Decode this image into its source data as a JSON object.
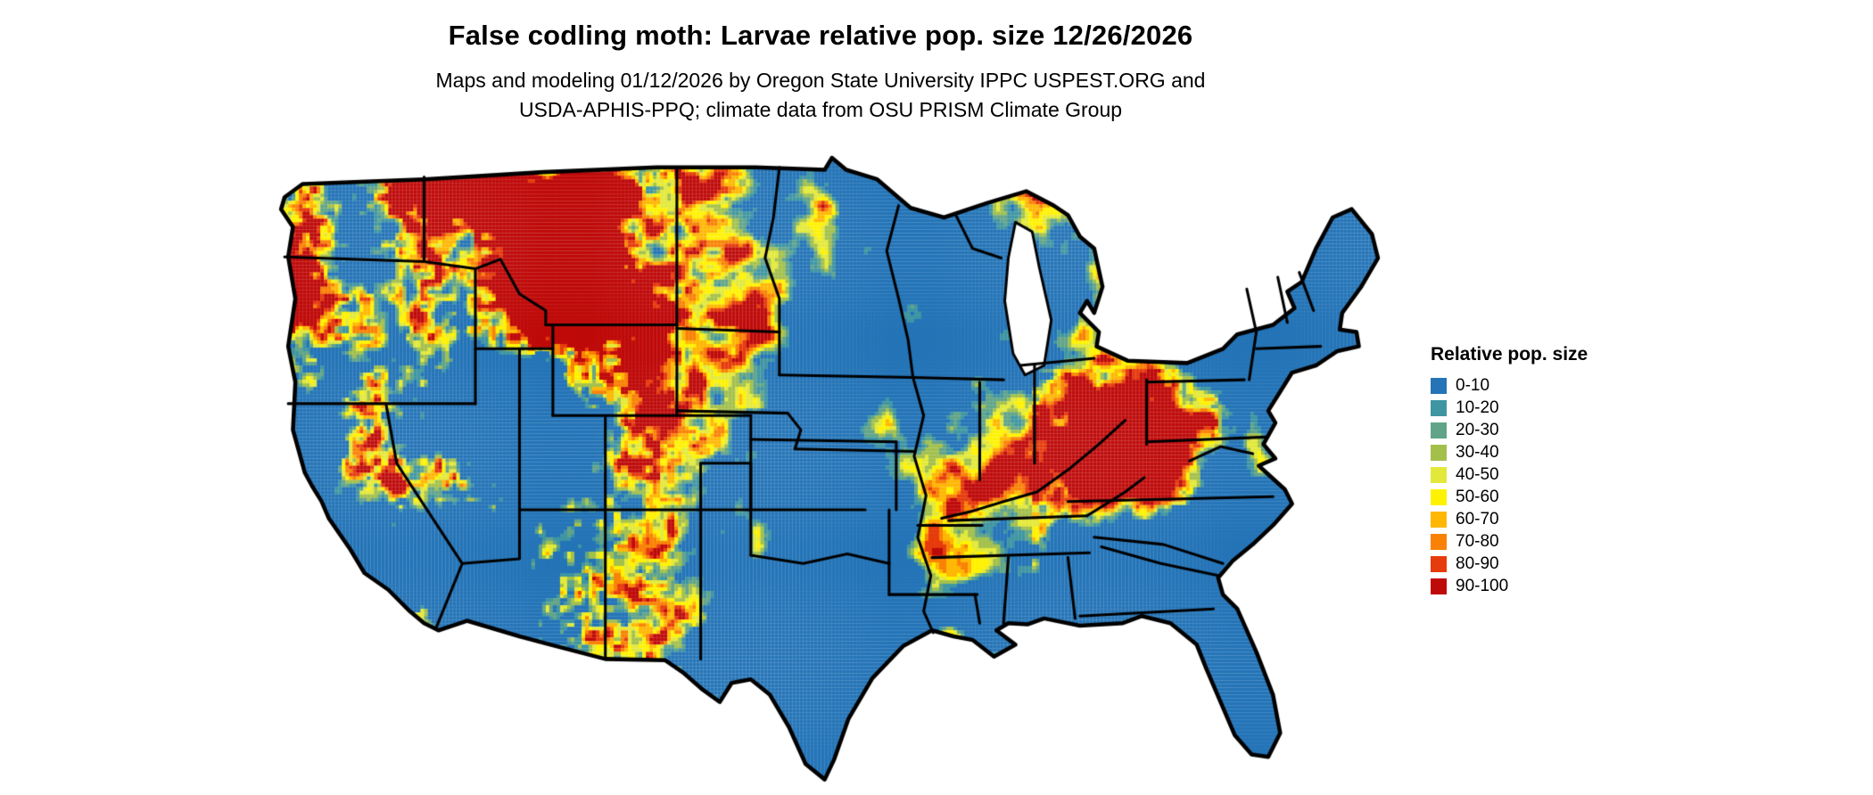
{
  "header": {
    "title": "False codling moth: Larvae relative pop. size 12/26/2026",
    "subtitle_line1": "Maps and modeling 01/12/2026 by Oregon State University IPPC USPEST.ORG and",
    "subtitle_line2": "USDA-APHIS-PPQ; climate data from OSU PRISM Climate Group"
  },
  "map": {
    "region": "Contiguous United States",
    "kind": "raster heat map of relative population size",
    "base_color_note": "majority of map is the 0-10 blue class with patches of high 90-100 red values fringed by yellow/orange"
  },
  "legend": {
    "title": "Relative pop. size",
    "items": [
      {
        "label": "0-10",
        "color": "#2474b7"
      },
      {
        "label": "10-20",
        "color": "#3f95a2"
      },
      {
        "label": "20-30",
        "color": "#62a487"
      },
      {
        "label": "30-40",
        "color": "#a3c04c"
      },
      {
        "label": "40-50",
        "color": "#e3e93a"
      },
      {
        "label": "50-60",
        "color": "#fff200"
      },
      {
        "label": "60-70",
        "color": "#ffb703"
      },
      {
        "label": "70-80",
        "color": "#f98205"
      },
      {
        "label": "80-90",
        "color": "#e63b0c"
      },
      {
        "label": "90-100",
        "color": "#bf0a0a"
      }
    ]
  }
}
